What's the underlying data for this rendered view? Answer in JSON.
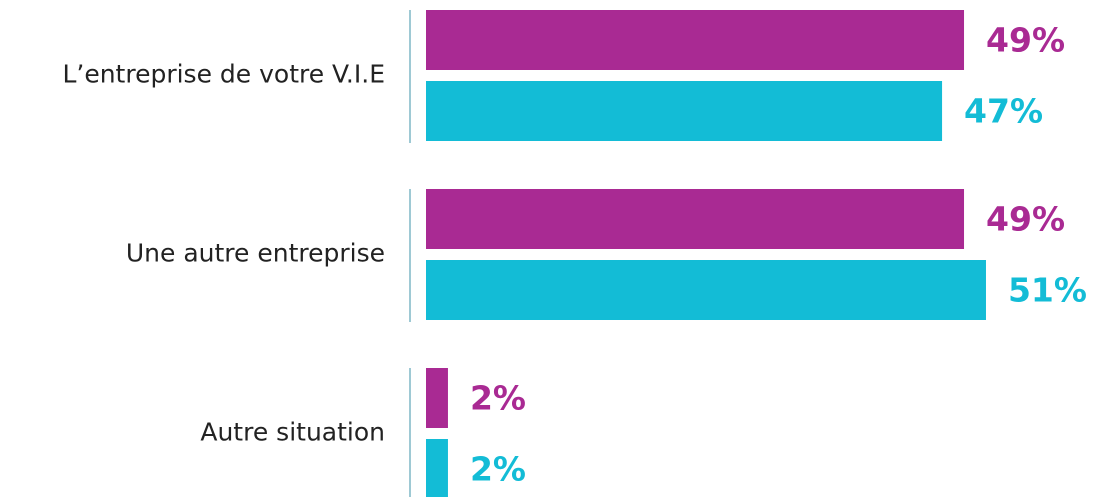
{
  "chart_data": {
    "type": "bar",
    "orientation": "horizontal",
    "categories": [
      "L’entreprise de votre V.I.E",
      "Une autre entreprise",
      "Autre situation"
    ],
    "series": [
      {
        "color": "#a92a93",
        "values": [
          49,
          49,
          2
        ],
        "value_labels": [
          "49%",
          "49%",
          "2%"
        ]
      },
      {
        "color": "#13bcd6",
        "values": [
          47,
          51,
          2
        ],
        "value_labels": [
          "47%",
          "51%",
          "2%"
        ]
      }
    ]
  }
}
